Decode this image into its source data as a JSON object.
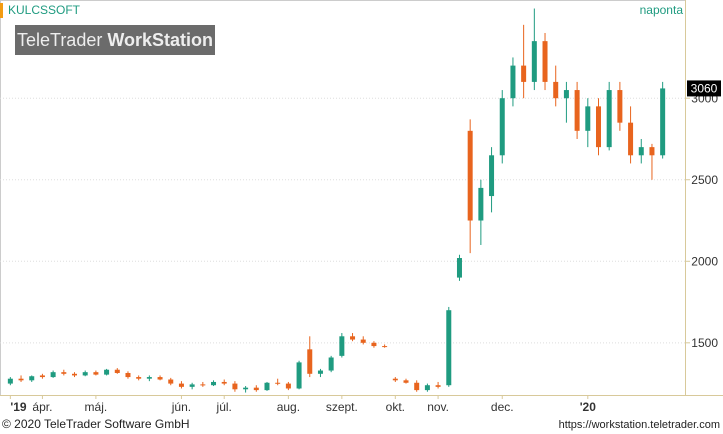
{
  "chart_data": {
    "type": "candlestick",
    "title": "KULCSSOFT",
    "subtitle": "naponta",
    "logo": [
      "TeleTrader",
      "WorkStation"
    ],
    "footer_left": "© 2020 TeleTrader Software GmbH",
    "footer_right": "https://workstation.teletrader.com",
    "categories": [
      "'19",
      null,
      null,
      "ápr.",
      null,
      null,
      null,
      null,
      "máj.",
      null,
      null,
      null,
      null,
      null,
      null,
      null,
      "jún.",
      null,
      null,
      null,
      "júl.",
      null,
      null,
      null,
      null,
      null,
      "aug.",
      null,
      null,
      null,
      null,
      "szept.",
      null,
      null,
      null,
      null,
      "okt.",
      null,
      null,
      null,
      "nov.",
      null,
      null,
      null,
      null,
      null,
      "dec.",
      null,
      null,
      null,
      null,
      null,
      null,
      null,
      "'20",
      null,
      null,
      null,
      null,
      null,
      null,
      null
    ],
    "open": [
      1250,
      1280,
      1270,
      1300,
      1290,
      1320,
      1310,
      1300,
      1320,
      1305,
      1335,
      1315,
      1290,
      1280,
      1290,
      1275,
      1250,
      1230,
      1245,
      1240,
      1260,
      1250,
      1215,
      1225,
      1210,
      1255,
      1250,
      1220,
      1460,
      1310,
      1330,
      1420,
      1540,
      1520,
      1500,
      1480,
      1280,
      1270,
      1255,
      1210,
      1240,
      1240,
      1900,
      2800,
      2250,
      2400,
      2650,
      3000,
      3200,
      3100,
      3350,
      3100,
      3000,
      3050,
      2800,
      2950,
      2700,
      3050,
      2850,
      2650,
      2700,
      2650
    ],
    "high": [
      1290,
      1300,
      1300,
      1310,
      1330,
      1335,
      1320,
      1330,
      1330,
      1340,
      1345,
      1325,
      1300,
      1300,
      1300,
      1285,
      1265,
      1255,
      1260,
      1270,
      1275,
      1265,
      1235,
      1240,
      1260,
      1280,
      1260,
      1390,
      1540,
      1340,
      1420,
      1560,
      1560,
      1540,
      1510,
      1490,
      1290,
      1280,
      1270,
      1250,
      1260,
      1720,
      2040,
      2870,
      2500,
      2700,
      3050,
      3250,
      3450,
      3550,
      3400,
      3200,
      3100,
      3100,
      3000,
      3000,
      3100,
      3100,
      2950,
      2750,
      2720,
      3100
    ],
    "low": [
      1240,
      1260,
      1260,
      1280,
      1285,
      1300,
      1290,
      1295,
      1300,
      1300,
      1310,
      1280,
      1270,
      1265,
      1270,
      1240,
      1220,
      1215,
      1230,
      1235,
      1240,
      1200,
      1195,
      1200,
      1205,
      1240,
      1210,
      1215,
      1290,
      1290,
      1320,
      1410,
      1510,
      1490,
      1470,
      1470,
      1260,
      1250,
      1200,
      1200,
      1220,
      1230,
      1880,
      2050,
      2100,
      2300,
      2600,
      2950,
      3000,
      3050,
      3050,
      2950,
      2850,
      2750,
      2700,
      2650,
      2680,
      2800,
      2600,
      2600,
      2500,
      2630
    ],
    "close": [
      1280,
      1270,
      1295,
      1290,
      1320,
      1310,
      1300,
      1320,
      1305,
      1335,
      1315,
      1290,
      1280,
      1290,
      1275,
      1250,
      1230,
      1245,
      1240,
      1260,
      1250,
      1215,
      1225,
      1210,
      1255,
      1250,
      1220,
      1380,
      1310,
      1330,
      1410,
      1540,
      1520,
      1500,
      1480,
      1475,
      1270,
      1255,
      1210,
      1240,
      1230,
      1700,
      2020,
      2250,
      2450,
      2650,
      3000,
      3200,
      3100,
      3350,
      3100,
      3000,
      3050,
      2800,
      2950,
      2700,
      3050,
      2850,
      2650,
      2700,
      2650,
      3060
    ],
    "up_color": "#1f9b80",
    "down_color": "#e8641e",
    "ylim": [
      1180,
      3590
    ],
    "yticks": [
      1500,
      2000,
      2500,
      3000
    ],
    "grid": true
  }
}
